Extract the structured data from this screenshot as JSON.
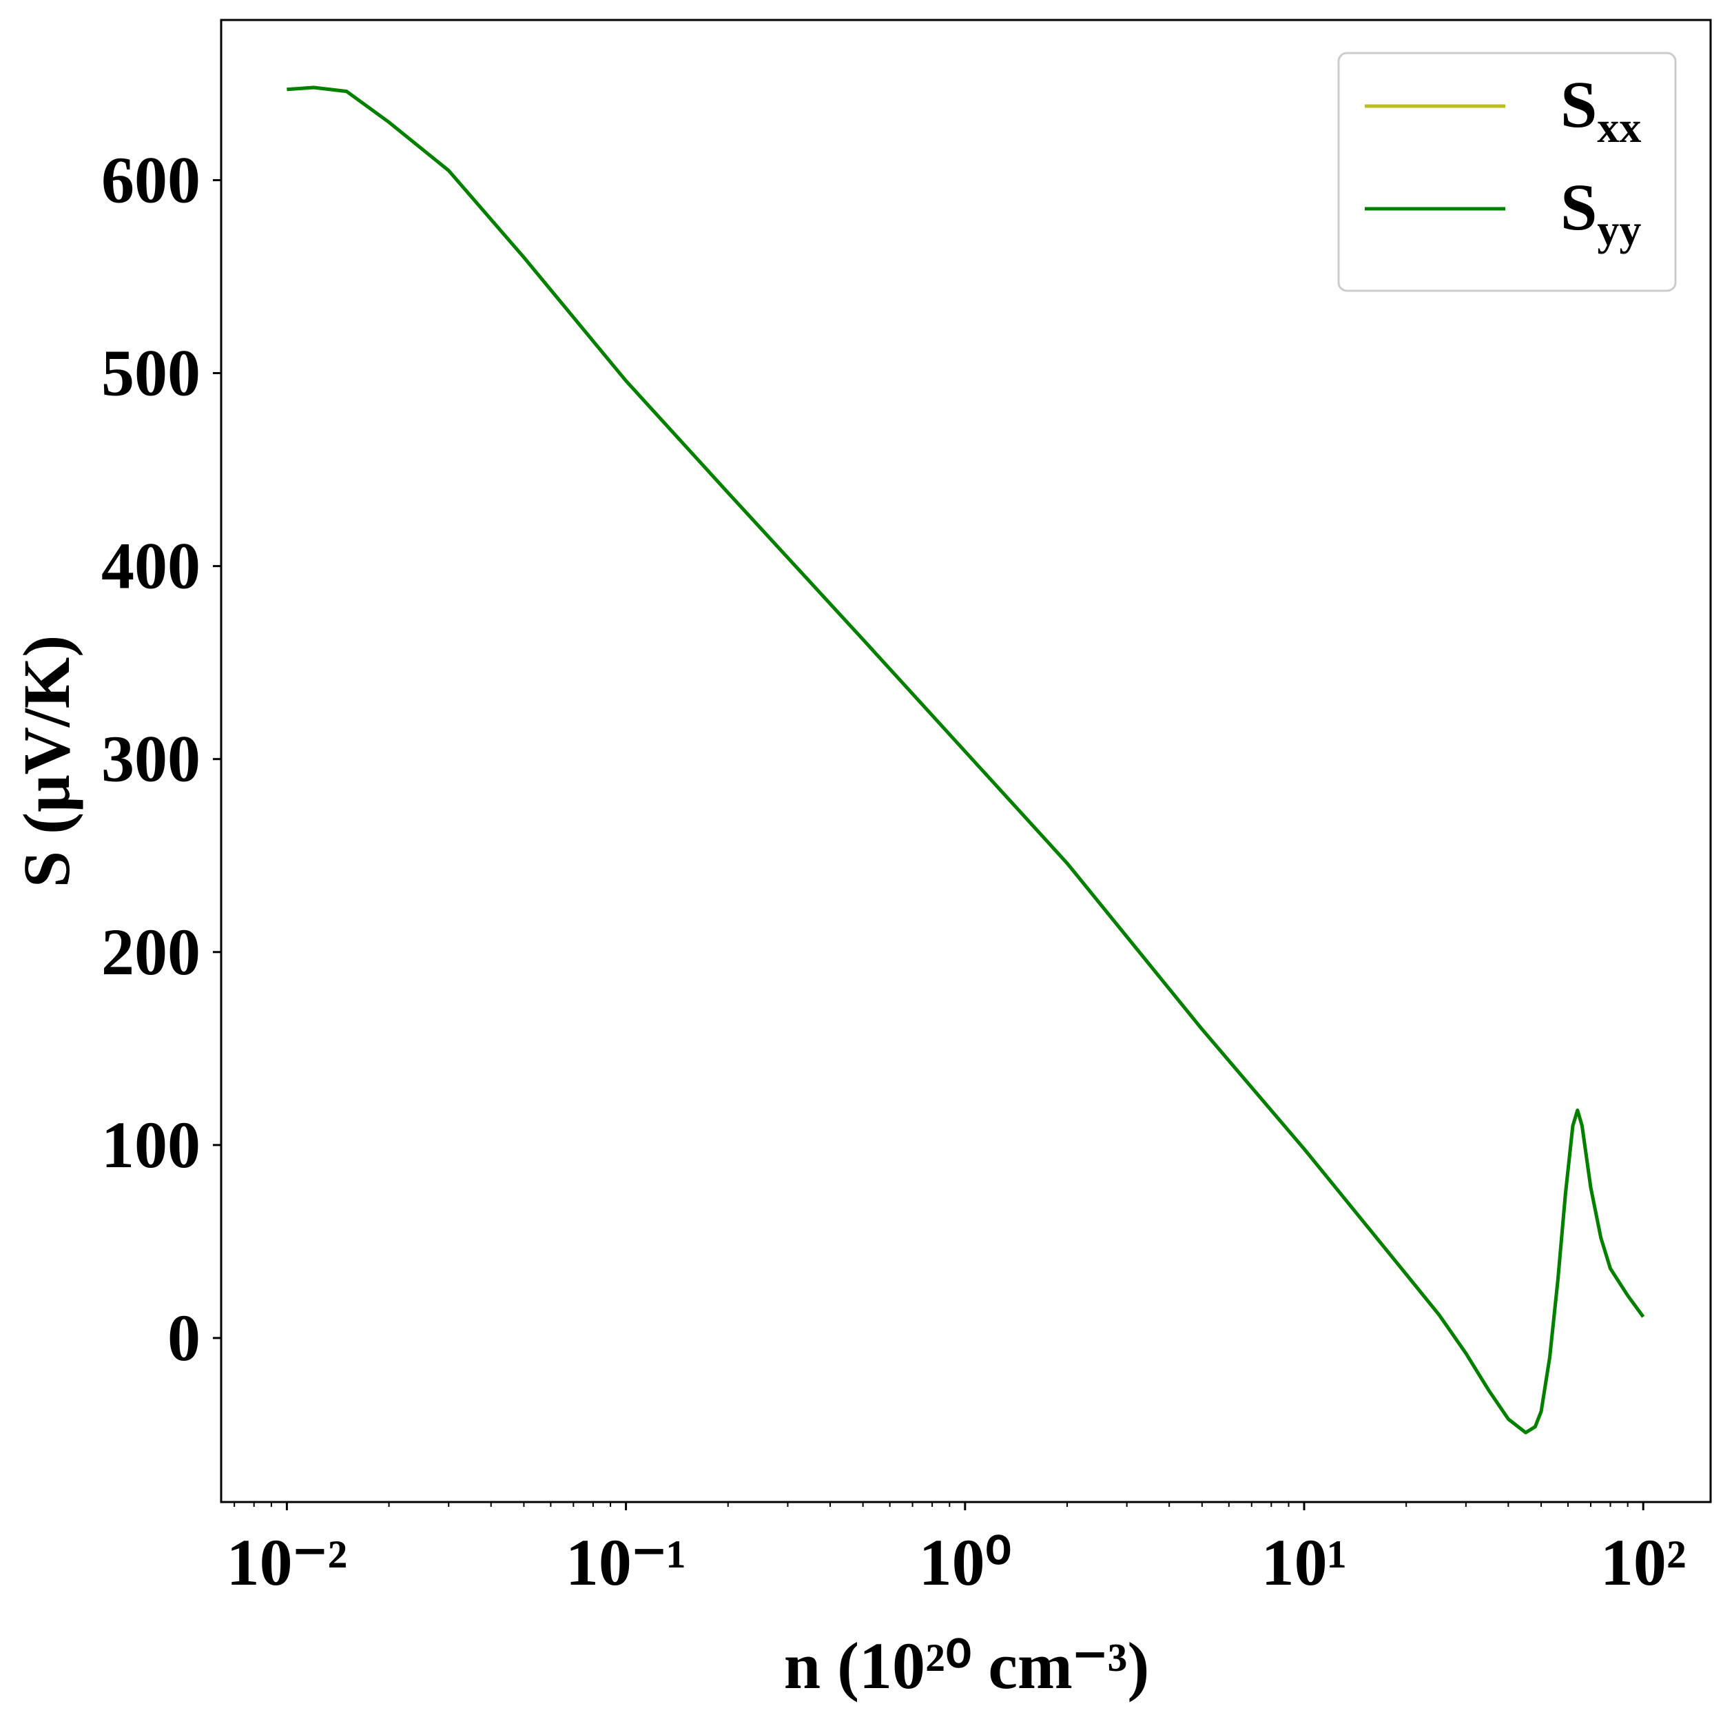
{
  "chart_data": {
    "type": "line",
    "xlabel": "n (10²⁰ cm⁻³)",
    "ylabel": "S (μV/K)",
    "x": [
      0.01,
      0.012,
      0.015,
      0.02,
      0.03,
      0.05,
      0.1,
      0.2,
      0.5,
      1,
      2,
      5,
      10,
      15,
      20,
      25,
      30,
      35,
      40,
      45,
      48,
      50,
      53,
      56,
      59,
      62,
      64,
      66,
      70,
      75,
      80,
      90,
      100
    ],
    "series": [
      {
        "name": "Sxx",
        "color": "#bcbd22",
        "values": [
          647,
          648,
          646,
          630,
          605,
          560,
          496,
          438,
          362,
          304,
          246,
          160,
          98,
          60,
          33,
          12,
          -8,
          -27,
          -42,
          -49,
          -46,
          -38,
          -10,
          30,
          75,
          110,
          118,
          110,
          78,
          52,
          36,
          22,
          11
        ]
      },
      {
        "name": "Syy",
        "color": "#008000",
        "values": [
          647,
          648,
          646,
          630,
          605,
          560,
          496,
          438,
          362,
          304,
          246,
          160,
          98,
          60,
          33,
          12,
          -8,
          -27,
          -42,
          -49,
          -46,
          -38,
          -10,
          30,
          75,
          110,
          118,
          110,
          78,
          52,
          36,
          22,
          11
        ]
      }
    ],
    "xscale": "log",
    "xlim": [
      0.0064,
      158
    ],
    "xticks": [
      {
        "value": 0.01,
        "label": "10⁻²"
      },
      {
        "value": 0.1,
        "label": "10⁻¹"
      },
      {
        "value": 1,
        "label": "10⁰"
      },
      {
        "value": 10,
        "label": "10¹"
      },
      {
        "value": 100,
        "label": "10²"
      }
    ],
    "ylim": [
      -85,
      683
    ],
    "yticks": [
      0,
      100,
      200,
      300,
      400,
      500,
      600
    ],
    "grid": false,
    "legend": "upper right"
  }
}
